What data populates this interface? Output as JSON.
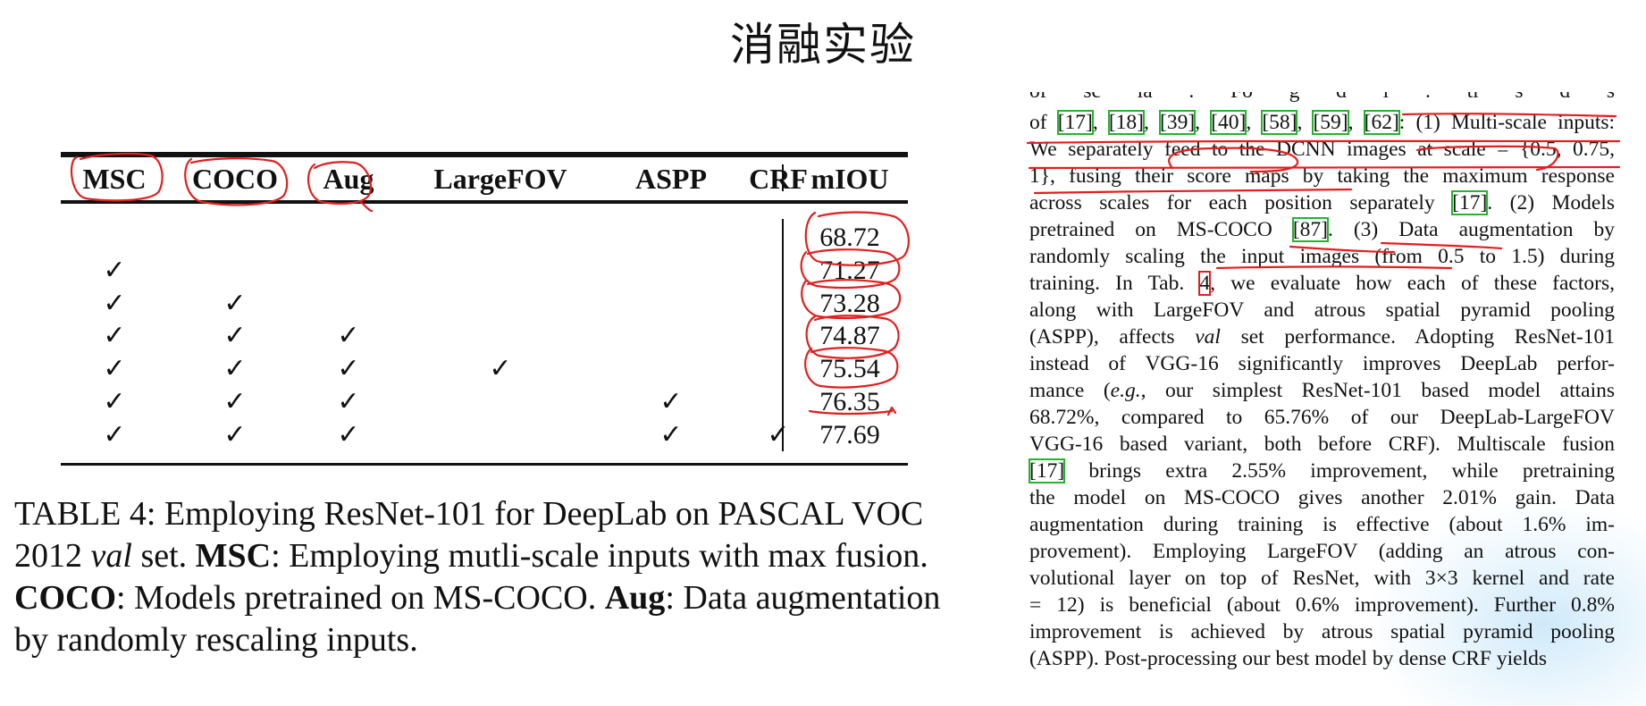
{
  "slide": {
    "title": "消融实验"
  },
  "table": {
    "headers": [
      "MSC",
      "COCO",
      "Aug",
      "LargeFOV",
      "ASPP",
      "CRF",
      "mIOU"
    ],
    "check_mark": "✓",
    "rows": [
      {
        "checks": [
          false,
          false,
          false,
          false,
          false,
          false
        ],
        "miou": "68.72"
      },
      {
        "checks": [
          true,
          false,
          false,
          false,
          false,
          false
        ],
        "miou": "71.27"
      },
      {
        "checks": [
          true,
          true,
          false,
          false,
          false,
          false
        ],
        "miou": "73.28"
      },
      {
        "checks": [
          true,
          true,
          true,
          false,
          false,
          false
        ],
        "miou": "74.87"
      },
      {
        "checks": [
          true,
          true,
          true,
          true,
          false,
          false
        ],
        "miou": "75.54"
      },
      {
        "checks": [
          true,
          true,
          true,
          false,
          true,
          false
        ],
        "miou": "76.35"
      },
      {
        "checks": [
          true,
          true,
          true,
          false,
          true,
          true
        ],
        "miou": "77.69"
      }
    ]
  },
  "caption": {
    "prefix": "TABLE 4: Employing ResNet-101 for DeepLab on PASCAL VOC 2012 ",
    "val": "val",
    "after_val": " set. ",
    "msc_label": "MSC",
    "msc_text": ": Employing mutli-scale inputs with max fusion. ",
    "coco_label": "COCO",
    "coco_text": ": Models pretrained on MS-COCO. ",
    "aug_label": "Aug",
    "aug_text": ": Data augmentation by randomly rescaling inputs."
  },
  "paragraph": {
    "cut_top": "of  sc  la    . Fo    g  d   l   .   ti  s   d s  ",
    "l1": {
      "t0": "of ",
      "r17": "[17]",
      "s1": ", ",
      "r18": "[18]",
      "s2": ", ",
      "r39": "[39]",
      "s3": ", ",
      "r40": "[40]",
      "s4": ", ",
      "r58": "[58]",
      "s5": ", ",
      "r59": "[59]",
      "s6": ", ",
      "r62": "[62]",
      "t1": ": (1) Multi-scale inputs:"
    },
    "l2": "We separately feed to the DCNN images at scale = {0.5, 0.75,",
    "l3": "1}, fusing their score maps by taking the maximum response",
    "l4": {
      "t0": "across scales for each position separately ",
      "r17": "[17]",
      "t1": ". (2) Models"
    },
    "l5": {
      "t0": "pretrained on MS-COCO ",
      "r87": "[87]",
      "t1": ". (3) Data augmentation by"
    },
    "l6": "randomly scaling the input images (from 0.5 to 1.5) during",
    "l7": {
      "t0": "training. In Tab. ",
      "r4": "4",
      "t1": ", we evaluate how each of these factors,"
    },
    "l8": "along with LargeFOV and atrous spatial pyramid pooling",
    "l9": {
      "t0": "(ASPP), affects ",
      "val": "val",
      "t1": " set performance. Adopting ResNet-101"
    },
    "l10": "instead of VGG-16 significantly improves DeepLab perfor-",
    "l11": {
      "t0": "mance (",
      "eg": "e.g.",
      "t1": ", our simplest ResNet-101 based model attains"
    },
    "l12": "68.72%, compared to 65.76% of our DeepLab-LargeFOV",
    "l13": "VGG-16 based variant, both before CRF). Multiscale fusion",
    "l14": {
      "r17": "[17]",
      "t1": " brings extra 2.55% improvement, while pretraining"
    },
    "l15": "the model on MS-COCO gives another 2.01% gain. Data",
    "l16": "augmentation during training is effective (about 1.6% im-",
    "l17": "provement). Employing LargeFOV (adding an atrous con-",
    "l18": "volutional layer on top of ResNet, with 3×3 kernel and rate",
    "l19": "= 12) is beneficial (about 0.6% improvement). Further 0.8%",
    "l20": "improvement is achieved by atrous spatial pyramid pooling",
    "l21": "(ASPP). Post-processing our best model by dense CRF yields"
  },
  "colors": {
    "annotation_red": "#e21f1f",
    "ref_box_green": "#25b32e",
    "glow_blue": "#cde8fa"
  }
}
